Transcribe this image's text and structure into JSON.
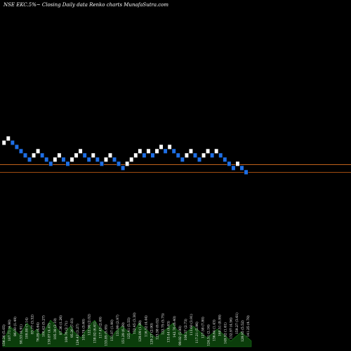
{
  "header": {
    "title": "NSE EKC.5%~  Closing Daily data  Renko  charts MunafaSutra.com"
  },
  "colors": {
    "background": "#000000",
    "up_brick": "#ffffff",
    "down_brick": "#1e6fe6",
    "price_line_upper": "#c0611a",
    "price_line_lower": "#a04c10",
    "volume_fill": "#0b3d0b",
    "volume_outline": "#1a7a1a"
  },
  "chart_data": {
    "type": "renko",
    "title": "NSE EKC.5%~  Closing Daily data  Renko  charts MunafaSutra.com",
    "bricks": [
      {
        "level": 0,
        "dir": "up"
      },
      {
        "level": 1,
        "dir": "up"
      },
      {
        "level": 0,
        "dir": "down"
      },
      {
        "level": -1,
        "dir": "down"
      },
      {
        "level": -2,
        "dir": "down"
      },
      {
        "level": -3,
        "dir": "down"
      },
      {
        "level": -4,
        "dir": "down"
      },
      {
        "level": -3,
        "dir": "up"
      },
      {
        "level": -2,
        "dir": "up"
      },
      {
        "level": -3,
        "dir": "down"
      },
      {
        "level": -4,
        "dir": "down"
      },
      {
        "level": -5,
        "dir": "down"
      },
      {
        "level": -4,
        "dir": "up"
      },
      {
        "level": -3,
        "dir": "up"
      },
      {
        "level": -4,
        "dir": "down"
      },
      {
        "level": -5,
        "dir": "down"
      },
      {
        "level": -4,
        "dir": "up"
      },
      {
        "level": -3,
        "dir": "up"
      },
      {
        "level": -2,
        "dir": "up"
      },
      {
        "level": -3,
        "dir": "down"
      },
      {
        "level": -4,
        "dir": "down"
      },
      {
        "level": -3,
        "dir": "up"
      },
      {
        "level": -4,
        "dir": "down"
      },
      {
        "level": -5,
        "dir": "down"
      },
      {
        "level": -4,
        "dir": "up"
      },
      {
        "level": -3,
        "dir": "up"
      },
      {
        "level": -4,
        "dir": "down"
      },
      {
        "level": -5,
        "dir": "down"
      },
      {
        "level": -6,
        "dir": "down"
      },
      {
        "level": -5,
        "dir": "up"
      },
      {
        "level": -4,
        "dir": "up"
      },
      {
        "level": -3,
        "dir": "up"
      },
      {
        "level": -2,
        "dir": "up"
      },
      {
        "level": -3,
        "dir": "down"
      },
      {
        "level": -2,
        "dir": "up"
      },
      {
        "level": -3,
        "dir": "down"
      },
      {
        "level": -2,
        "dir": "up"
      },
      {
        "level": -1,
        "dir": "up"
      },
      {
        "level": -2,
        "dir": "down"
      },
      {
        "level": -1,
        "dir": "up"
      },
      {
        "level": -2,
        "dir": "down"
      },
      {
        "level": -3,
        "dir": "down"
      },
      {
        "level": -4,
        "dir": "down"
      },
      {
        "level": -3,
        "dir": "up"
      },
      {
        "level": -2,
        "dir": "up"
      },
      {
        "level": -3,
        "dir": "down"
      },
      {
        "level": -4,
        "dir": "down"
      },
      {
        "level": -3,
        "dir": "up"
      },
      {
        "level": -2,
        "dir": "up"
      },
      {
        "level": -3,
        "dir": "down"
      },
      {
        "level": -2,
        "dir": "up"
      },
      {
        "level": -3,
        "dir": "down"
      },
      {
        "level": -4,
        "dir": "down"
      },
      {
        "level": -5,
        "dir": "down"
      },
      {
        "level": -6,
        "dir": "down"
      },
      {
        "level": -5,
        "dir": "up"
      },
      {
        "level": -6,
        "dir": "down"
      },
      {
        "level": -7,
        "dir": "down"
      }
    ],
    "price_lines": [
      {
        "name": "upper"
      },
      {
        "name": "lower"
      }
    ],
    "volume": [
      3,
      4,
      7,
      6,
      5,
      4,
      6,
      8,
      7,
      5,
      6,
      4,
      5,
      7,
      9,
      8,
      6,
      5,
      4,
      6,
      7,
      5,
      4,
      3,
      5,
      6,
      8,
      9,
      7,
      6,
      5,
      4,
      3,
      5,
      6,
      7,
      6,
      5,
      4,
      6,
      8,
      7,
      6,
      5,
      4,
      3,
      4,
      5,
      6,
      7,
      8,
      6,
      5,
      4,
      5,
      6,
      7,
      6,
      5,
      4,
      3,
      4,
      5,
      6,
      5,
      4,
      3,
      2,
      3,
      4,
      5,
      4,
      3,
      2
    ],
    "volume_labels": [
      "156.26 (5.05)",
      "107.71 (4.90)",
      "86.00 (1.49)",
      "90.53 (4.91)",
      "109.80 (7.14)",
      "83.77 (3.32)",
      "76.89 (4.64)",
      "100.42 (5.27)",
      "130.87 (4.47)",
      "105.38 (2.18)",
      "87.36 (1.26)",
      "109.76 (2.71)",
      "95.26 (7.03)",
      "124.43 (3.27)",
      "103.74 (5.60)",
      "122.99 (2.02)",
      "138.92 (6.61)",
      "117.43 (2.49)",
      "133.85 (5.95)",
      "131.07 (1.90)",
      "131.99 (2.97)",
      "151.29 (6.29)",
      "125.41 (5.55)",
      "132.45 (3.30)",
      "129.09 (1.88)",
      "116.52 (4.44)",
      "129.27 (2.90)",
      "123.58 (6.02)",
      "122.75 (5.75)",
      "133.44 (4.63)",
      "142.76 (6.40)",
      "99.92 (5.00)",
      "106.37 (2.73)",
      "113.60 (3.91)",
      "117.21 (5.96)",
      "127.58 (7.80)",
      "124.51 (2.16)",
      "136.64 (1.43)",
      "160.51 (8.99)",
      "149.92 (1.61)",
      "132.97 (4.56)",
      "159.27 (3.61)",
      "129.95 (5.52)",
      "141.25 (4.78)"
    ]
  }
}
